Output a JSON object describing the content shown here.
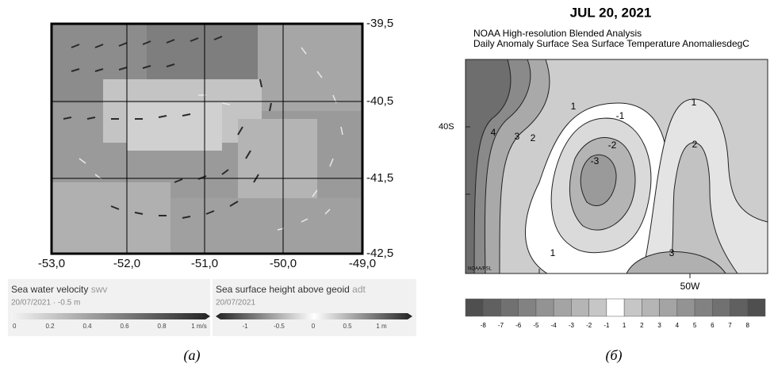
{
  "panel_a": {
    "y_ticks": [
      "-39,5",
      "-40,5",
      "-41,5",
      "-42,5"
    ],
    "x_ticks": [
      "-53,0",
      "-52,0",
      "-51,0",
      "-50,0",
      "-49,0"
    ],
    "legend_velocity": {
      "title": "Sea water velocity",
      "code": "swv",
      "subtitle": "20/07/2021  ·  -0.5 m",
      "ticks": [
        "0",
        "0.2",
        "0.4",
        "0.6",
        "0.8",
        "1 m/s"
      ]
    },
    "legend_height": {
      "title": "Sea surface height above geoid",
      "code": "adt",
      "subtitle": "20/07/2021",
      "ticks": [
        "-1",
        "-0.5",
        "0",
        "0.5",
        "1 m"
      ]
    },
    "caption": "(a)"
  },
  "panel_b": {
    "title": "JUL 20, 2021",
    "subtitle_lines": [
      "NOAA High-resolution Blended Analysis",
      "Daily Anomaly Surface Sea Surface Temperature AnomaliesdegC"
    ],
    "lat_label": "40S",
    "lon_label": "50W",
    "credit": "NOAA/PSL",
    "contour_labels": [
      "4",
      "3",
      "2",
      "1",
      "-1",
      "-2",
      "-3",
      "1",
      "2",
      "1",
      "3"
    ],
    "colorbar_ticks": [
      "-8",
      "-7",
      "-6",
      "-5",
      "-4",
      "-3",
      "-2",
      "-1",
      "1",
      "2",
      "3",
      "4",
      "5",
      "6",
      "7",
      "8"
    ],
    "caption": "(б)"
  }
}
